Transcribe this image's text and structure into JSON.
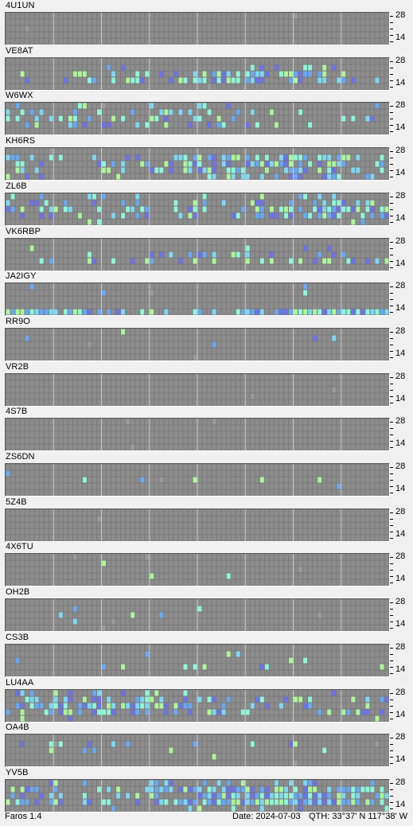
{
  "band_scale": {
    "high": "28",
    "low": "14"
  },
  "colors": {
    "empty": "#7a7a7a",
    "cell": "#8c8c8c",
    "signal_levels": [
      "#9a9a9a",
      "#6f73e6",
      "#6aa8f0",
      "#7fd7f2",
      "#8ff5d8",
      "#aef59a"
    ]
  },
  "stations": [
    {
      "callsign": "4U1UN",
      "seed": 11,
      "activity": [
        0.01,
        0.01,
        0.0,
        0.0,
        0.0
      ]
    },
    {
      "callsign": "VE8AT",
      "seed": 23,
      "activity": [
        0.0,
        0.12,
        0.45,
        0.55,
        0.0
      ]
    },
    {
      "callsign": "W6WX",
      "seed": 37,
      "activity": [
        0.08,
        0.22,
        0.25,
        0.18,
        0.0
      ]
    },
    {
      "callsign": "KH6RS",
      "seed": 41,
      "activity": [
        0.0,
        0.45,
        0.55,
        0.55,
        0.3
      ]
    },
    {
      "callsign": "ZL6B",
      "seed": 53,
      "activity": [
        0.15,
        0.35,
        0.55,
        0.35,
        0.1
      ]
    },
    {
      "callsign": "VK6RBP",
      "seed": 67,
      "activity": [
        0.0,
        0.08,
        0.18,
        0.22,
        0.0
      ]
    },
    {
      "callsign": "JA2IGY",
      "seed": 71,
      "activity": [
        0.05,
        0.04,
        0.02,
        0.0,
        0.85
      ]
    },
    {
      "callsign": "RR9O",
      "seed": 83,
      "activity": [
        0.02,
        0.02,
        0.02,
        0.0,
        0.0
      ]
    },
    {
      "callsign": "VR2B",
      "seed": 97,
      "activity": [
        0.01,
        0.0,
        0.0,
        0.0,
        0.0
      ]
    },
    {
      "callsign": "4S7B",
      "seed": 101,
      "activity": [
        0.005,
        0.0,
        0.0,
        0.0,
        0.0
      ]
    },
    {
      "callsign": "ZS6DN",
      "seed": 113,
      "activity": [
        0.0,
        0.04,
        0.05,
        0.05,
        0.0
      ]
    },
    {
      "callsign": "5Z4B",
      "seed": 127,
      "activity": [
        0.0,
        0.0,
        0.0,
        0.01,
        0.0
      ]
    },
    {
      "callsign": "4X6TU",
      "seed": 131,
      "activity": [
        0.0,
        0.02,
        0.0,
        0.02,
        0.0
      ]
    },
    {
      "callsign": "OH2B",
      "seed": 139,
      "activity": [
        0.01,
        0.01,
        0.02,
        0.02,
        0.0
      ]
    },
    {
      "callsign": "CS3B",
      "seed": 149,
      "activity": [
        0.02,
        0.03,
        0.08,
        0.12,
        0.0
      ]
    },
    {
      "callsign": "LU4AA",
      "seed": 157,
      "activity": [
        0.1,
        0.3,
        0.5,
        0.45,
        0.05
      ]
    },
    {
      "callsign": "OA4B",
      "seed": 163,
      "activity": [
        0.0,
        0.1,
        0.12,
        0.08,
        0.0
      ]
    },
    {
      "callsign": "YV5B",
      "seed": 173,
      "activity": [
        0.2,
        0.6,
        0.7,
        0.75,
        0.1
      ]
    }
  ],
  "status_bar": {
    "app_version": "Faros 1.4",
    "date": "Date: 2024-07-03",
    "qth": "QTH: 33°37' N  117°38' W"
  }
}
